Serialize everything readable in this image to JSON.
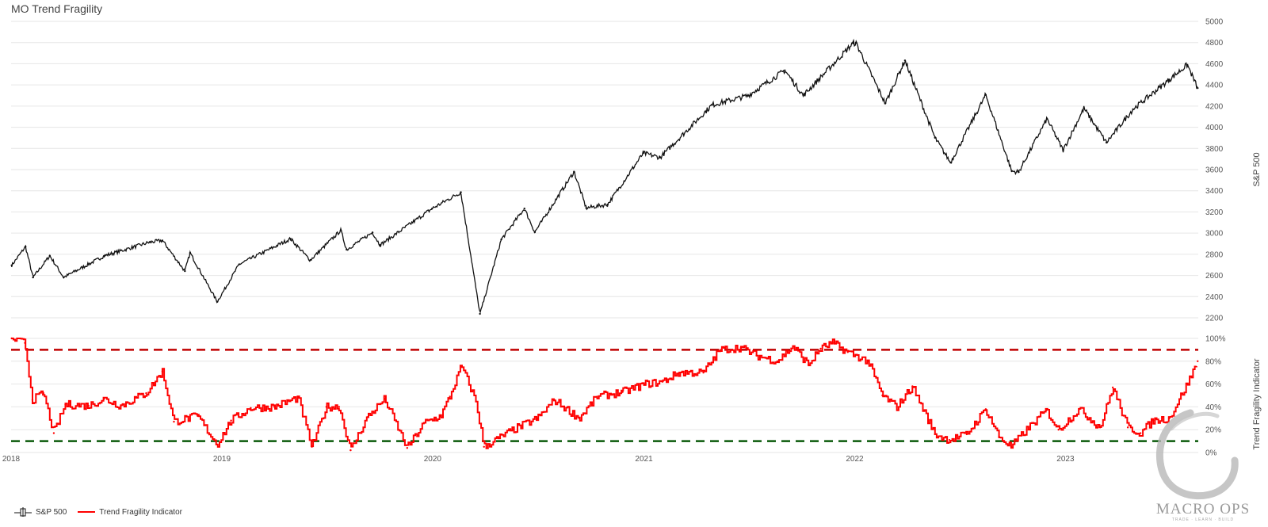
{
  "title": "MO Trend Fragility",
  "legend": {
    "sp500_label": "S&P 500",
    "tfi_label": "Trend Fragility Indicator"
  },
  "logo": {
    "text": "MACRO OPS",
    "sub": "TRADE · LEARN · BUILD"
  },
  "colors": {
    "price": "#111111",
    "tfi": "#ff0000",
    "upper_band": "#c00000",
    "lower_band": "#0a5a0a",
    "grid": "#e6e6e6"
  },
  "chart_data": [
    {
      "type": "line",
      "name": "S&P 500",
      "ylabel": "S&P 500",
      "ylim": [
        2200,
        5000
      ],
      "yticks": [
        2200,
        2400,
        2600,
        2800,
        3000,
        3200,
        3400,
        3600,
        3800,
        4000,
        4200,
        4400,
        4600,
        4800,
        5000
      ],
      "x": [
        "2018-01-02",
        "2018-01-26",
        "2018-02-08",
        "2018-03-09",
        "2018-04-02",
        "2018-06-12",
        "2018-08-29",
        "2018-09-20",
        "2018-10-29",
        "2018-11-07",
        "2018-12-24",
        "2019-01-31",
        "2019-04-30",
        "2019-06-03",
        "2019-07-26",
        "2019-08-05",
        "2019-09-19",
        "2019-10-02",
        "2019-12-31",
        "2020-02-19",
        "2020-03-23",
        "2020-04-29",
        "2020-06-08",
        "2020-06-26",
        "2020-09-02",
        "2020-09-23",
        "2020-10-30",
        "2020-12-31",
        "2021-01-29",
        "2021-04-29",
        "2021-06-30",
        "2021-09-02",
        "2021-10-04",
        "2021-12-29",
        "2022-01-03",
        "2022-02-23",
        "2022-03-29",
        "2022-05-20",
        "2022-06-16",
        "2022-08-16",
        "2022-09-30",
        "2022-10-12",
        "2022-11-30",
        "2022-12-28",
        "2023-02-02",
        "2023-03-13",
        "2023-04-28",
        "2023-06-30",
        "2023-07-31",
        "2023-08-18"
      ],
      "values": [
        2695,
        2872,
        2581,
        2786,
        2582,
        2786,
        2914,
        2930,
        2641,
        2813,
        2351,
        2705,
        2946,
        2744,
        3026,
        2844,
        3006,
        2887,
        3231,
        3386,
        2237,
        2940,
        3232,
        3009,
        3580,
        3237,
        3270,
        3756,
        3714,
        4211,
        4298,
        4537,
        4300,
        4793,
        4797,
        4225,
        4631,
        3901,
        3666,
        4305,
        3585,
        3577,
        4080,
        3783,
        4179,
        3855,
        4170,
        4450,
        4590,
        4370
      ]
    },
    {
      "type": "line",
      "name": "Trend Fragility Indicator",
      "ylabel": "Trend Fragility Indicator",
      "ylim": [
        0,
        100
      ],
      "yticks": [
        0,
        20,
        40,
        60,
        80,
        100
      ],
      "ytick_suffix": "%",
      "thresholds": [
        90,
        10
      ],
      "x": [
        "2018-01-02",
        "2018-01-25",
        "2018-02-07",
        "2018-02-26",
        "2018-03-16",
        "2018-04-05",
        "2018-05-15",
        "2018-06-11",
        "2018-07-10",
        "2018-08-23",
        "2018-09-20",
        "2018-10-10",
        "2018-11-20",
        "2018-12-24",
        "2019-01-17",
        "2019-02-20",
        "2019-04-02",
        "2019-05-13",
        "2019-06-06",
        "2019-07-01",
        "2019-07-23",
        "2019-08-12",
        "2019-09-10",
        "2019-10-10",
        "2019-11-18",
        "2019-12-18",
        "2020-01-15",
        "2020-01-31",
        "2020-02-20",
        "2020-03-16",
        "2020-03-30",
        "2020-05-20",
        "2020-07-01",
        "2020-07-30",
        "2020-09-11",
        "2020-10-12",
        "2020-11-25",
        "2021-01-04",
        "2021-02-02",
        "2021-03-03",
        "2021-04-14",
        "2021-05-13",
        "2021-06-18",
        "2021-07-15",
        "2021-08-20",
        "2021-09-16",
        "2021-10-13",
        "2021-11-03",
        "2021-11-24",
        "2021-12-20",
        "2022-01-24",
        "2022-02-18",
        "2022-03-15",
        "2022-04-11",
        "2022-05-20",
        "2022-06-14",
        "2022-07-14",
        "2022-08-16",
        "2022-09-08",
        "2022-09-29",
        "2022-10-26",
        "2022-11-29",
        "2022-12-20",
        "2023-01-25",
        "2023-03-02",
        "2023-03-24",
        "2023-04-19",
        "2023-05-11",
        "2023-06-02",
        "2023-06-30",
        "2023-07-31",
        "2023-08-18"
      ],
      "values": [
        100,
        96,
        46,
        52,
        17,
        42,
        41,
        47,
        41,
        52,
        71,
        27,
        32,
        7,
        28,
        39,
        40,
        48,
        5,
        40,
        40,
        2,
        31,
        47,
        4,
        26,
        32,
        49,
        76,
        45,
        5,
        20,
        30,
        46,
        30,
        49,
        53,
        60,
        62,
        70,
        70,
        90,
        92,
        85,
        80,
        93,
        77,
        91,
        96,
        88,
        80,
        50,
        40,
        58,
        16,
        11,
        16,
        38,
        14,
        5,
        20,
        37,
        20,
        38,
        22,
        57,
        22,
        17,
        28,
        30,
        60,
        80
      ]
    }
  ],
  "x_axis": {
    "ticks": [
      "2018",
      "2019",
      "2020",
      "2021",
      "2022",
      "2023"
    ]
  }
}
